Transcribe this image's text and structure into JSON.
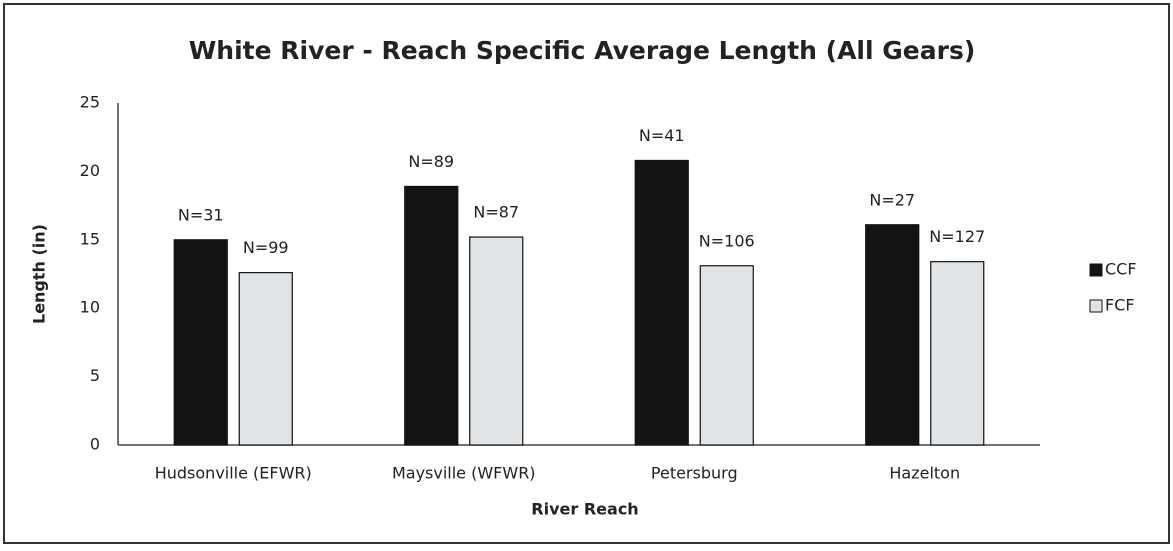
{
  "chart_data": {
    "type": "bar",
    "title": "White River - Reach Specific Average Length (All Gears)",
    "xlabel": "River Reach",
    "ylabel": "Length (in)",
    "categories": [
      "Hudsonville (EFWR)",
      "Maysville (WFWR)",
      "Petersburg",
      "Hazelton"
    ],
    "series": [
      {
        "name": "CCF",
        "color": "#141414",
        "values": [
          15,
          18.9,
          20.8,
          16.1
        ],
        "annotations": [
          "N=31",
          "N=89",
          "N=41",
          "N=27"
        ]
      },
      {
        "name": "FCF",
        "color": "#e1e4e7",
        "values": [
          12.6,
          15.2,
          13.1,
          13.4
        ],
        "annotations": [
          "N=99",
          "N=87",
          "N=106",
          "N=127"
        ]
      }
    ],
    "ylim": [
      0,
      25
    ],
    "yticks": [
      0,
      5,
      10,
      15,
      20,
      25
    ],
    "grid": false,
    "legend": "right"
  }
}
